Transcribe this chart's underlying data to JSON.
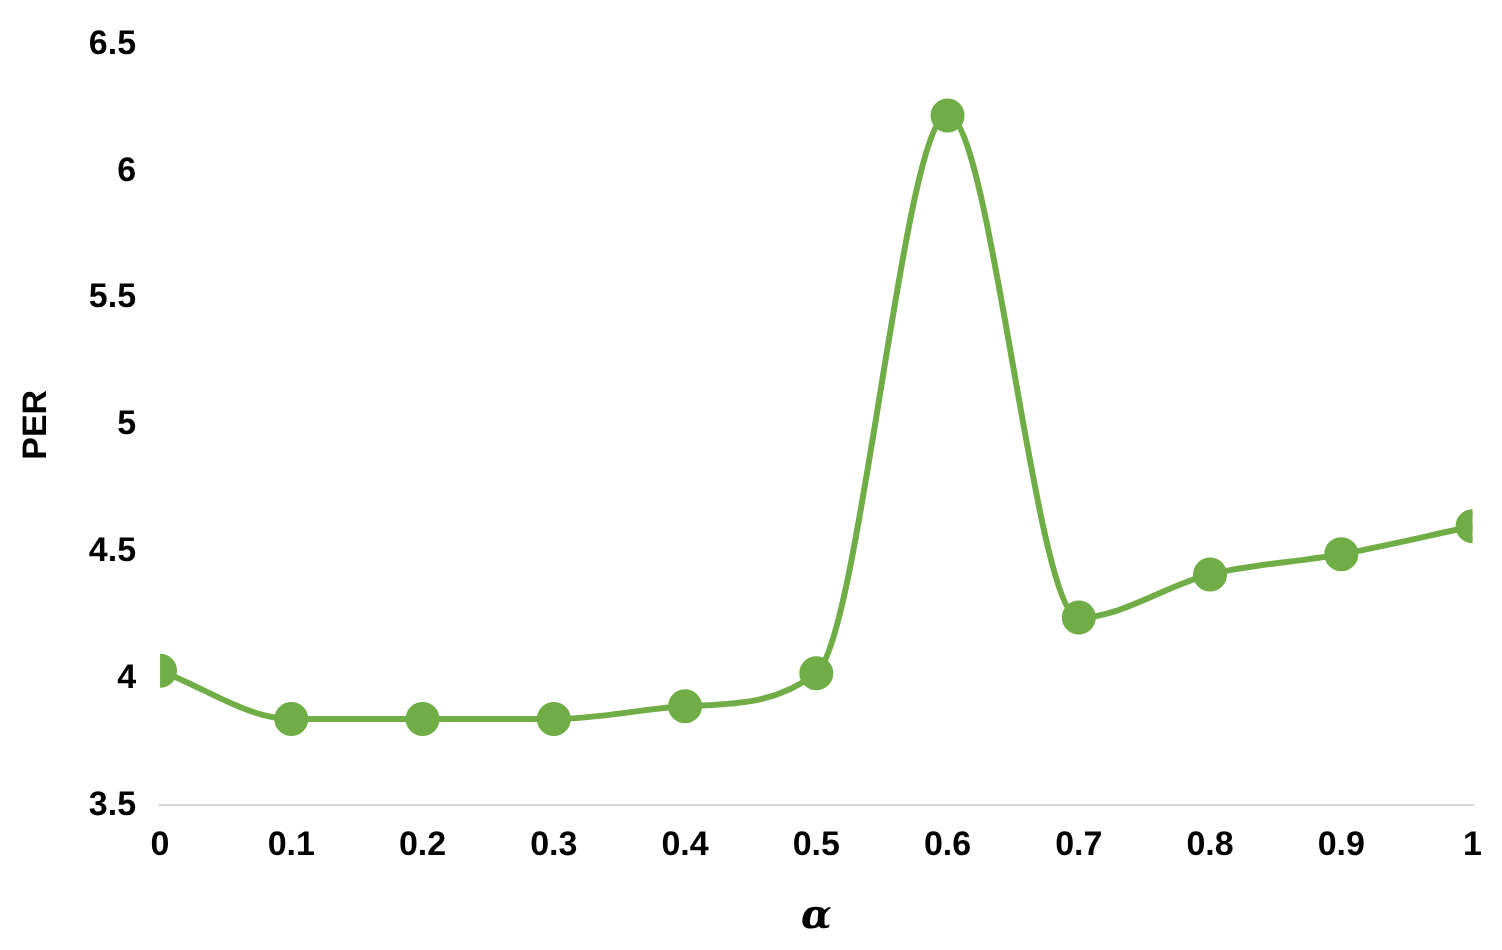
{
  "chart_data": {
    "type": "line",
    "xlabel": "α",
    "ylabel": "PER",
    "x": [
      0,
      0.1,
      0.2,
      0.3,
      0.4,
      0.5,
      0.6,
      0.7,
      0.8,
      0.9,
      1
    ],
    "series": [
      {
        "color": "#70ad47",
        "values": [
          4.03,
          3.84,
          3.84,
          3.84,
          3.89,
          4.02,
          6.22,
          4.24,
          4.41,
          4.49,
          4.6
        ]
      }
    ],
    "xlim": [
      0,
      1
    ],
    "xticks": [
      0,
      0.1,
      0.2,
      0.3,
      0.4,
      0.5,
      0.6,
      0.7,
      0.8,
      0.9,
      1
    ],
    "ylim": [
      3.5,
      6.5
    ],
    "yticks": [
      3.5,
      4,
      4.5,
      5,
      5.5,
      6,
      6.5
    ],
    "grid": false,
    "legend": false,
    "marker": "circle",
    "line_style": "solid"
  }
}
